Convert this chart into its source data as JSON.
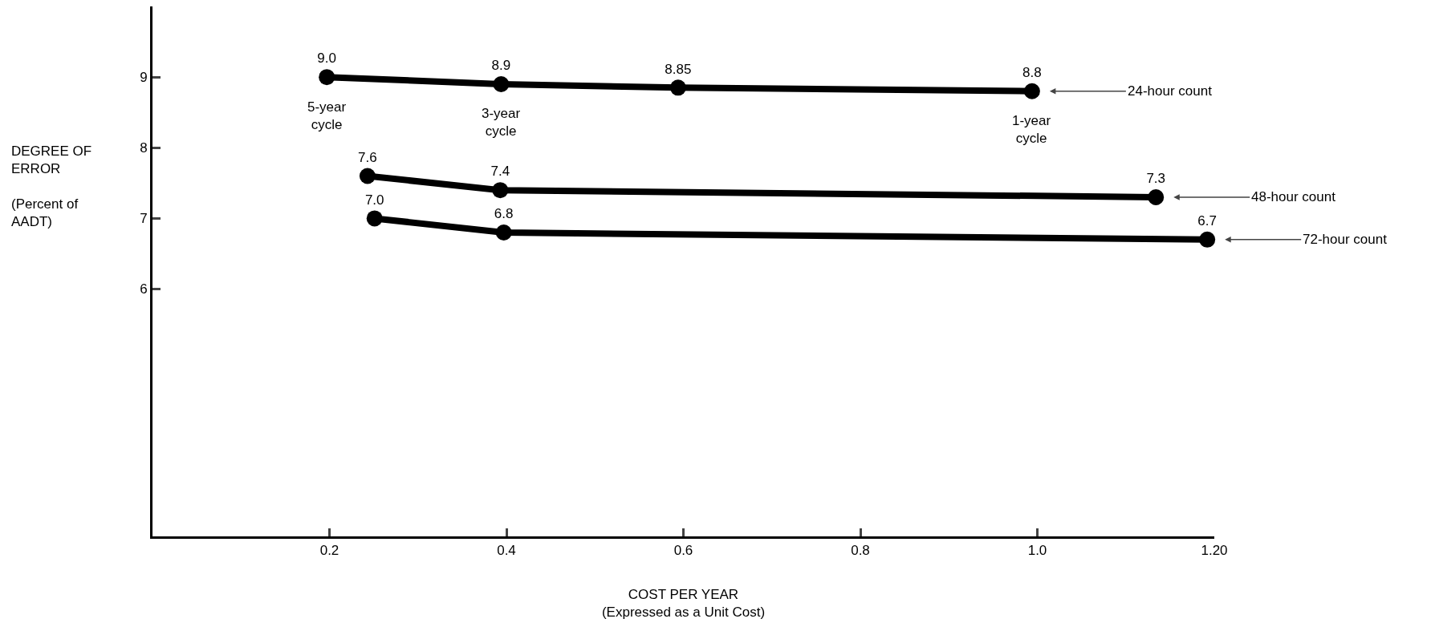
{
  "chart_data": {
    "type": "line",
    "xlabel": "COST PER YEAR\n(Expressed as a Unit Cost)",
    "ylabel": "DEGREE OF\nERROR\n\n(Percent of\nAADT)",
    "series": [
      {
        "name": "24-hour count",
        "color": "#000000",
        "x": [
          0.197,
          0.394,
          0.594,
          0.994
        ],
        "values": [
          9.0,
          8.9,
          8.85,
          8.8
        ],
        "value_labels": [
          "9.0",
          "8.9",
          "8.85",
          "8.8"
        ]
      },
      {
        "name": "48-hour count",
        "color": "#000000",
        "x": [
          0.243,
          0.393,
          1.134
        ],
        "values": [
          7.6,
          7.4,
          7.3
        ],
        "value_labels": [
          "7.6",
          "7.4",
          "7.3"
        ]
      },
      {
        "name": "72-hour count",
        "color": "#000000",
        "x": [
          0.251,
          0.397,
          1.192
        ],
        "values": [
          7.0,
          6.8,
          6.7
        ],
        "value_labels": [
          "7.0",
          "6.8",
          "6.7"
        ]
      }
    ],
    "annotations": [
      {
        "text": "5-year cycle",
        "x": 0.197,
        "y": 9.0
      },
      {
        "text": "3-year cycle",
        "x": 0.394,
        "y": 8.9
      },
      {
        "text": "1-year cycle",
        "x": 0.994,
        "y": 8.8
      }
    ],
    "xlim": [
      0,
      1.2
    ],
    "xticks": [
      0.2,
      0.4,
      0.6,
      0.8,
      {
        "value": 1.0,
        "label": "1.0"
      },
      {
        "value": 1.2,
        "label": "1.20"
      }
    ],
    "ylim": [
      2.5,
      10
    ],
    "yticks": [
      6,
      7,
      8,
      9
    ],
    "grid": false,
    "legend": false,
    "marker": "circle",
    "line_style": "solid"
  }
}
